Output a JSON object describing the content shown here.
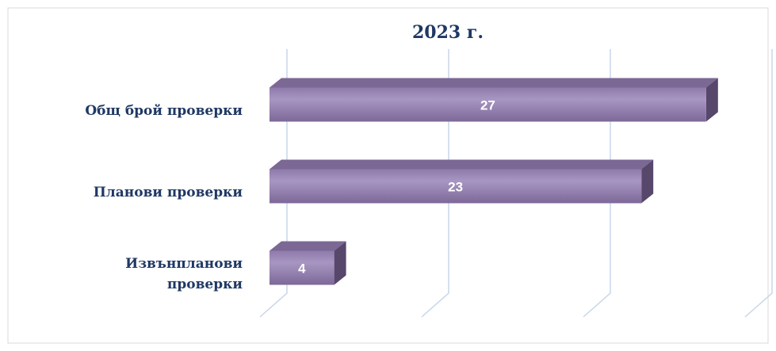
{
  "chart_data": {
    "type": "bar3d_horizontal",
    "title": "2023 г.",
    "categories": [
      "Общ брой проверки",
      "Планови проверки",
      "Извънпланови проверки"
    ],
    "values": [
      27,
      23,
      4
    ],
    "color": "#9a86b6",
    "xlim": [
      0,
      30
    ],
    "xticks": [
      0,
      10,
      20,
      30
    ],
    "grid": true
  }
}
